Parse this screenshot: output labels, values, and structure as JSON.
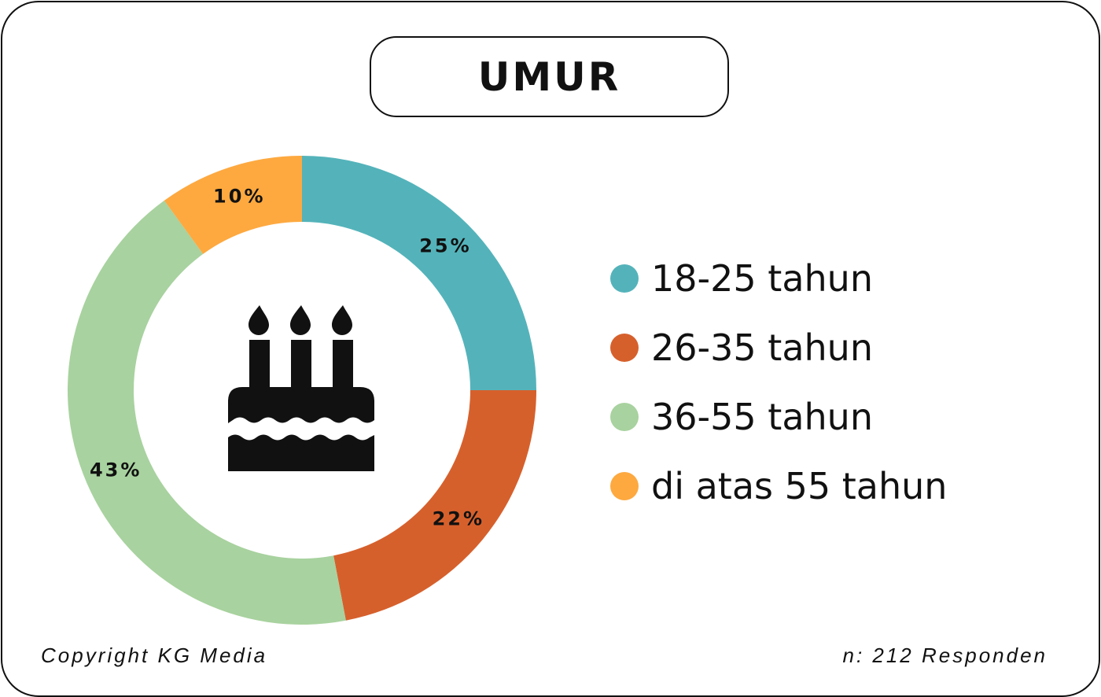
{
  "title": "UMUR",
  "colors": {
    "teal": "#54b3ba",
    "orange": "#d6602c",
    "green": "#a8d29f",
    "yellow": "#fda940"
  },
  "center_icon": "birthday-cake-icon",
  "chart_data": {
    "type": "pie",
    "variant": "donut",
    "title": "UMUR",
    "start": "top, clockwise",
    "categories": [
      "18-25 tahun",
      "26-35 tahun",
      "36-55 tahun",
      "di atas 55 tahun"
    ],
    "values": [
      25,
      22,
      43,
      10
    ],
    "value_labels": [
      "25%",
      "22%",
      "43%",
      "10%"
    ],
    "colors": [
      "#54b3ba",
      "#d6602c",
      "#a8d29f",
      "#fda940"
    ],
    "legend_position": "right"
  },
  "footer": {
    "copyright": "Copyright KG Media",
    "respondents": "n: 212 Responden"
  }
}
